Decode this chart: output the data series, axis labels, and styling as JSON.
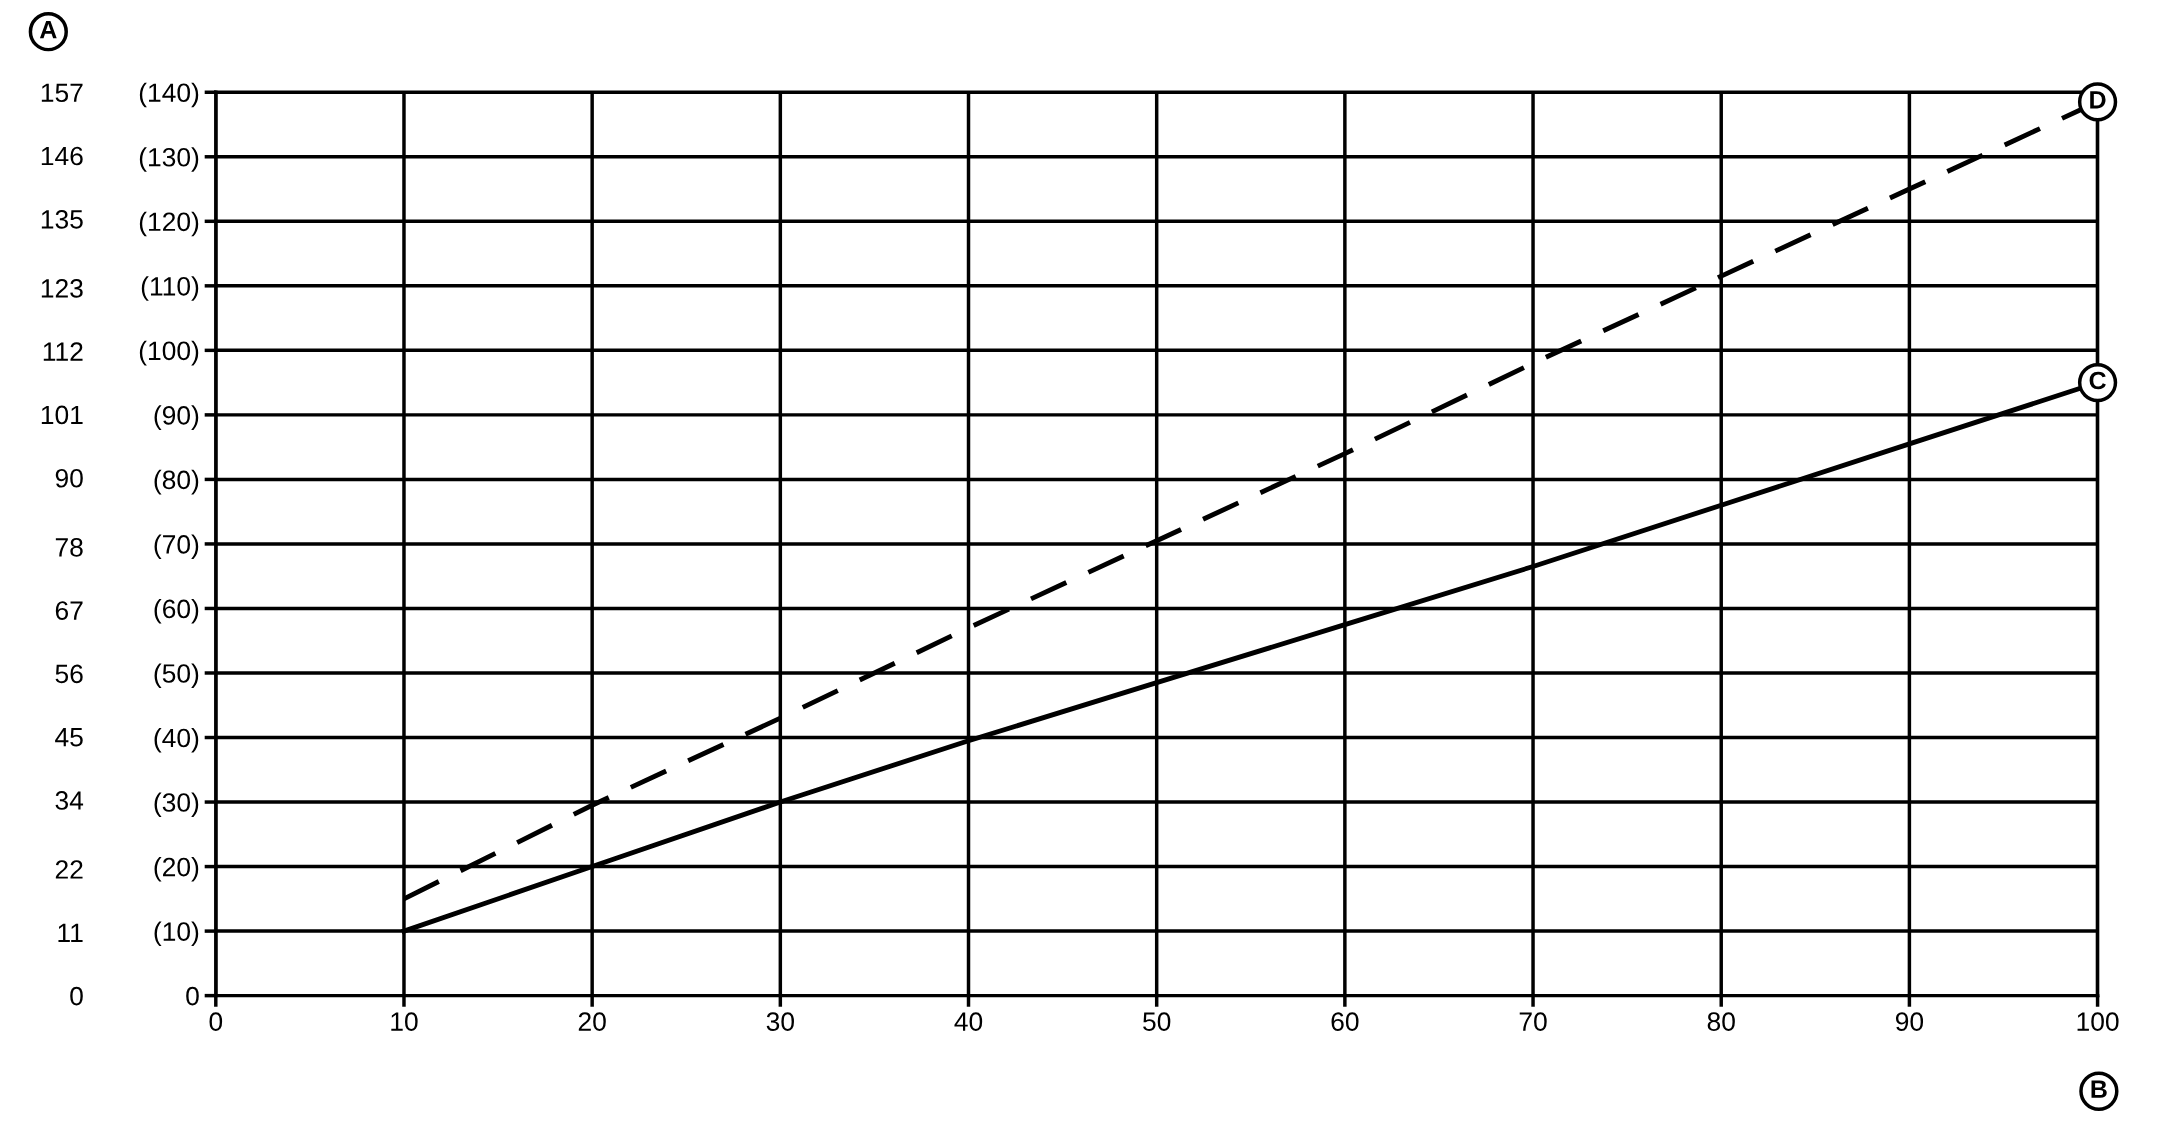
{
  "chart_data": {
    "type": "line",
    "xlabel": "B",
    "y2label": "A",
    "x": [
      10,
      20,
      30,
      40,
      50,
      60,
      70,
      80,
      90,
      100
    ],
    "series": [
      {
        "name": "C",
        "color": "#000000",
        "line_style": "solid",
        "values": [
          10,
          20,
          30,
          39.5,
          48.5,
          57.5,
          66.5,
          76,
          85.5,
          95
        ]
      },
      {
        "name": "D",
        "color": "#000000",
        "line_style": "dashed",
        "values": [
          15,
          29.5,
          43,
          57,
          70.5,
          84,
          98,
          111.5,
          125,
          138.5
        ]
      }
    ],
    "xlim": [
      0,
      100
    ],
    "xticks": [
      0,
      10,
      20,
      30,
      40,
      50,
      60,
      70,
      80,
      90,
      100
    ],
    "ylim": [
      0,
      140
    ],
    "yticks": [
      0,
      {
        "value": 10,
        "label": "(10)"
      },
      {
        "value": 20,
        "label": "(20)"
      },
      {
        "value": 30,
        "label": "(30)"
      },
      {
        "value": 40,
        "label": "(40)"
      },
      {
        "value": 50,
        "label": "(50)"
      },
      {
        "value": 60,
        "label": "(60)"
      },
      {
        "value": 70,
        "label": "(70)"
      },
      {
        "value": 80,
        "label": "(80)"
      },
      {
        "value": 90,
        "label": "(90)"
      },
      {
        "value": 100,
        "label": "(100)"
      },
      {
        "value": 110,
        "label": "(110)"
      },
      {
        "value": 120,
        "label": "(120)"
      },
      {
        "value": 130,
        "label": "(130)"
      },
      {
        "value": 140,
        "label": "(140)"
      }
    ],
    "y2lim": [
      0,
      157
    ],
    "y2ticks": [
      0,
      11,
      22,
      34,
      45,
      56,
      67,
      78,
      90,
      101,
      112,
      123,
      135,
      146,
      157
    ],
    "grid": true,
    "legend": false
  }
}
